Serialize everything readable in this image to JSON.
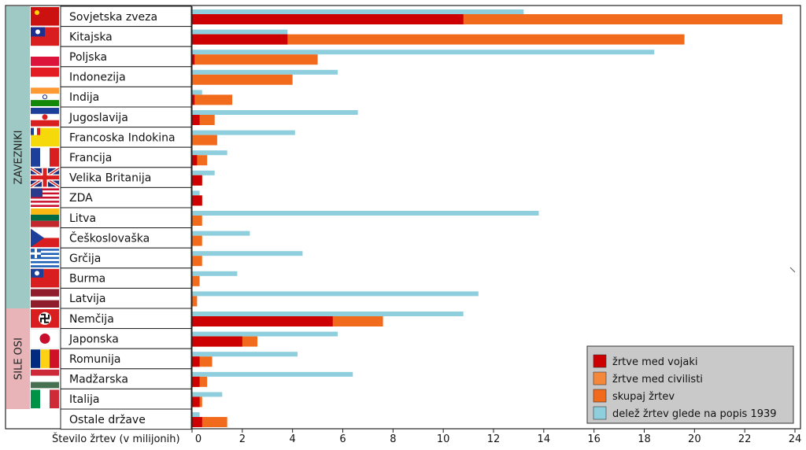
{
  "chart_data": {
    "type": "bar",
    "orientation": "horizontal",
    "categories": [
      "Sovjetska zveza",
      "Kitajska",
      "Poljska",
      "Indonezija",
      "Indija",
      "Jugoslavija",
      "Francoska Indokina",
      "Francija",
      "Velika Britanija",
      "ZDA",
      "Litva",
      "Češkoslovaška",
      "Grčija",
      "Burma",
      "Latvija",
      "Nemčija",
      "Japonska",
      "Romunija",
      "Madžarska",
      "Italija",
      "Ostale države"
    ],
    "groups": [
      {
        "label": "ZAVEZNIKI",
        "categories": [
          "Sovjetska zveza",
          "Kitajska",
          "Poljska",
          "Indonezija",
          "Indija",
          "Jugoslavija",
          "Francoska Indokina",
          "Francija",
          "Velika Britanija",
          "ZDA",
          "Litva",
          "Češkoslovaška",
          "Grčija",
          "Burma",
          "Latvija"
        ],
        "color": "#9ec9c5"
      },
      {
        "label": "SILE OSI",
        "categories": [
          "Nemčija",
          "Japonska",
          "Romunija",
          "Madžarska",
          "Italija"
        ],
        "color": "#e8b4b8"
      }
    ],
    "series": [
      {
        "name": "žrtve med vojaki",
        "color": "#cc0000",
        "values": [
          10.8,
          3.8,
          0.1,
          0,
          0.1,
          0.3,
          0,
          0.2,
          0.4,
          0.4,
          0,
          0,
          0,
          0,
          0,
          5.6,
          2.0,
          0.3,
          0.3,
          0.3,
          0.4
        ]
      },
      {
        "name": "žrtve med civilisti",
        "color": "#f5873a",
        "values": [
          12.7,
          15.8,
          4.9,
          4.0,
          1.4,
          0.7,
          1.0,
          0.4,
          0.1,
          0,
          0.4,
          0.4,
          0.4,
          0.3,
          0.2,
          2.0,
          0.6,
          0.4,
          0.2,
          0.1,
          1.0
        ]
      },
      {
        "name": "skupaj žrtev",
        "color": "#f26a1b",
        "values": [
          23.5,
          19.6,
          5.0,
          4.0,
          1.6,
          0.9,
          1.0,
          0.6,
          0.4,
          0.4,
          0.4,
          0.4,
          0.4,
          0.3,
          0.2,
          7.6,
          2.6,
          0.8,
          0.6,
          0.4,
          1.4
        ]
      },
      {
        "name": "delež žrtev glede na popis 1939",
        "color": "#8fcfdd",
        "values": [
          13.2,
          3.8,
          18.4,
          5.8,
          0.4,
          6.6,
          4.1,
          1.4,
          0.9,
          0.3,
          13.8,
          2.3,
          4.4,
          1.8,
          11.4,
          10.8,
          5.8,
          4.2,
          6.4,
          1.2,
          0.3
        ]
      }
    ],
    "xlabel": "Število žrtev (v milijonih)",
    "xlim": [
      0,
      24
    ],
    "xticks": [
      0,
      2,
      4,
      6,
      8,
      10,
      12,
      14,
      16,
      18,
      20,
      22,
      24
    ],
    "grid": false,
    "legend_position": "bottom-right"
  },
  "groups_labels": {
    "allies": "ZAVEZNIKI",
    "axis": "SILE OSI"
  },
  "flags": [
    "soviet-union-flag",
    "china-flag",
    "poland-flag",
    "indonesia-flag",
    "india-flag",
    "yugoslavia-flag",
    "french-indochina-flag",
    "france-flag",
    "uk-flag",
    "usa-flag",
    "lithuania-flag",
    "czechoslovakia-flag",
    "greece-flag",
    "burma-flag",
    "latvia-flag",
    "germany-flag",
    "japan-flag",
    "romania-flag",
    "hungary-flag",
    "italy-flag",
    "none"
  ]
}
